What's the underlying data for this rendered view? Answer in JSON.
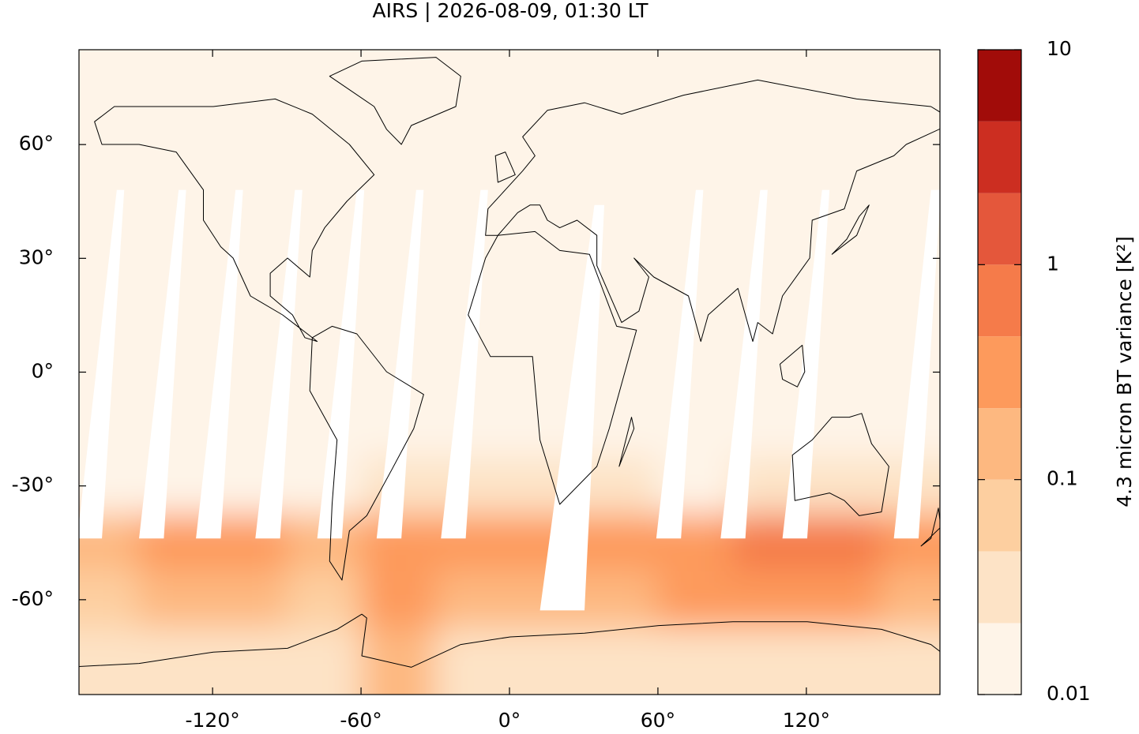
{
  "chart_data": {
    "type": "heatmap",
    "title": "AIRS | 2026-08-09, 01:30 LT",
    "x": [
      -165,
      -135,
      -105,
      -75,
      -45,
      -15,
      15,
      45,
      75,
      105,
      135,
      165
    ],
    "y": [
      75,
      60,
      45,
      30,
      15,
      0,
      -15,
      -30,
      -45,
      -60,
      -75
    ],
    "values": [
      [
        0.015,
        0.015,
        0.015,
        0.015,
        0.015,
        0.015,
        0.015,
        0.015,
        0.015,
        0.015,
        0.015,
        0.015
      ],
      [
        0.015,
        0.015,
        0.015,
        0.015,
        0.015,
        0.015,
        0.015,
        0.015,
        0.015,
        0.015,
        0.015,
        0.015
      ],
      [
        0.015,
        0.015,
        0.015,
        0.015,
        0.015,
        0.015,
        0.015,
        0.015,
        0.015,
        0.015,
        0.015,
        0.015
      ],
      [
        0.015,
        0.015,
        0.015,
        0.015,
        0.015,
        0.015,
        0.015,
        0.015,
        0.015,
        0.015,
        0.015,
        0.015
      ],
      [
        0.015,
        0.015,
        0.015,
        0.015,
        0.015,
        0.015,
        0.015,
        0.015,
        0.015,
        0.015,
        0.015,
        0.015
      ],
      [
        0.015,
        0.015,
        0.015,
        0.015,
        0.015,
        0.015,
        0.015,
        0.015,
        0.015,
        0.015,
        0.015,
        0.015
      ],
      [
        0.015,
        0.015,
        0.015,
        0.015,
        0.015,
        0.015,
        0.015,
        0.015,
        0.015,
        0.015,
        0.015,
        0.02
      ],
      [
        0.02,
        0.02,
        0.02,
        0.02,
        0.03,
        0.03,
        0.04,
        0.03,
        0.02,
        0.03,
        0.04,
        0.04
      ],
      [
        0.15,
        0.25,
        0.3,
        0.2,
        0.3,
        0.3,
        0.4,
        0.4,
        0.35,
        0.5,
        0.5,
        0.3
      ],
      [
        0.06,
        0.12,
        0.15,
        0.08,
        0.3,
        0.2,
        0.15,
        0.2,
        0.3,
        0.3,
        0.4,
        0.15
      ],
      [
        0.04,
        0.04,
        0.03,
        0.03,
        0.1,
        0.03,
        0.03,
        0.03,
        0.03,
        0.03,
        0.04,
        0.03
      ]
    ],
    "xlim": [
      -174,
      174
    ],
    "ylim": [
      -85,
      85
    ],
    "xticks": [
      {
        "value": -120,
        "label": "-120°"
      },
      {
        "value": -60,
        "label": "-60°"
      },
      {
        "value": 0,
        "label": "0°"
      },
      {
        "value": 60,
        "label": "60°"
      },
      {
        "value": 120,
        "label": "120°"
      }
    ],
    "yticks": [
      {
        "value": 60,
        "label": "60°"
      },
      {
        "value": 30,
        "label": "30°"
      },
      {
        "value": 0,
        "label": "0°"
      },
      {
        "value": -30,
        "label": "-30°"
      },
      {
        "value": -60,
        "label": "-60°"
      }
    ],
    "colorbar": {
      "label": "4.3 micron BT variance [K²]",
      "log": true,
      "levels": [
        0.01,
        0.0215,
        0.0464,
        0.1,
        0.215,
        0.464,
        1,
        2.15,
        4.64,
        10
      ],
      "colors": [
        "#fef4e8",
        "#fde3c6",
        "#fdcfa0",
        "#fdb880",
        "#fd9a5c",
        "#f57b4a",
        "#e4573b",
        "#cc2e21",
        "#a10c09"
      ],
      "ticks": [
        0.01,
        0.1,
        1,
        10
      ]
    }
  }
}
